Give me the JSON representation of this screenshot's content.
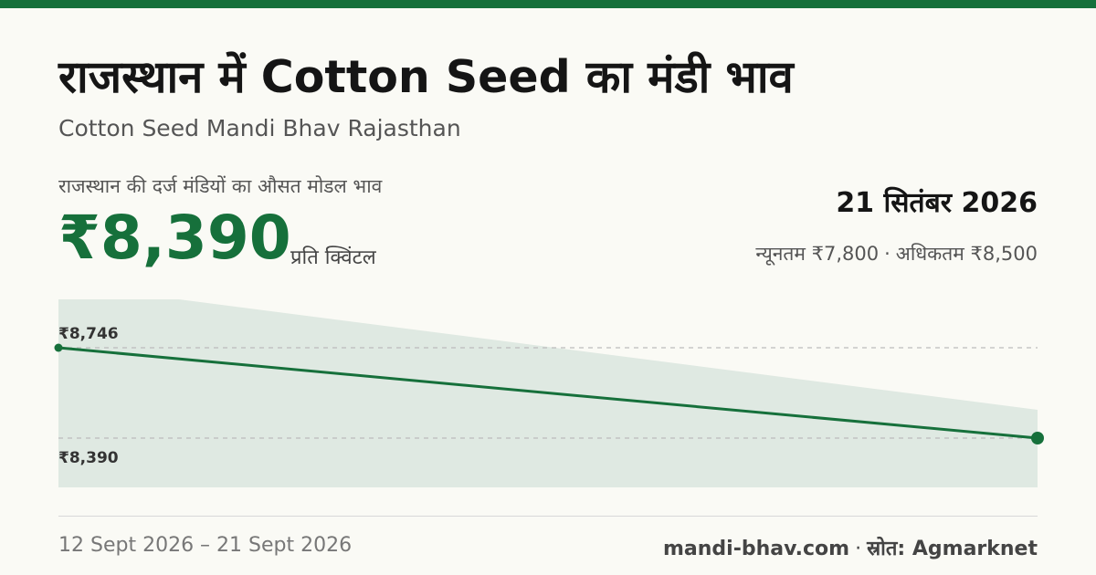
{
  "header": {
    "title": "राजस्थान में Cotton Seed का मंडी भाव",
    "subtitle": "Cotton Seed Mandi Bhav Rajasthan"
  },
  "summary": {
    "avg_label": "राजस्थान की दर्ज मंडियों का औसत मोडल भाव",
    "price": "₹8,390",
    "unit": "प्रति क्विंटल",
    "date": "21 सितंबर 2026",
    "min_text": "न्यूनतम ₹7,800",
    "separator": "·",
    "max_text": "अधिकतम ₹8,500"
  },
  "footer": {
    "period": "12 Sept 2026 – 21 Sept 2026",
    "site": "mandi-bhav.com",
    "separator": "·",
    "source": "स्रोत: Agmarknet"
  },
  "colors": {
    "accent": "#16703b",
    "band": "#dfe9e2"
  },
  "chart_data": {
    "type": "line",
    "x": [
      "12 Sept 2026",
      "21 Sept 2026"
    ],
    "series": [
      {
        "values": [
          8746,
          8390
        ]
      }
    ],
    "reference_labels": [
      {
        "value": 8746,
        "label": "₹8,746"
      },
      {
        "value": 8390,
        "label": "₹8,390"
      }
    ],
    "grid": "dashed reference lines"
  }
}
